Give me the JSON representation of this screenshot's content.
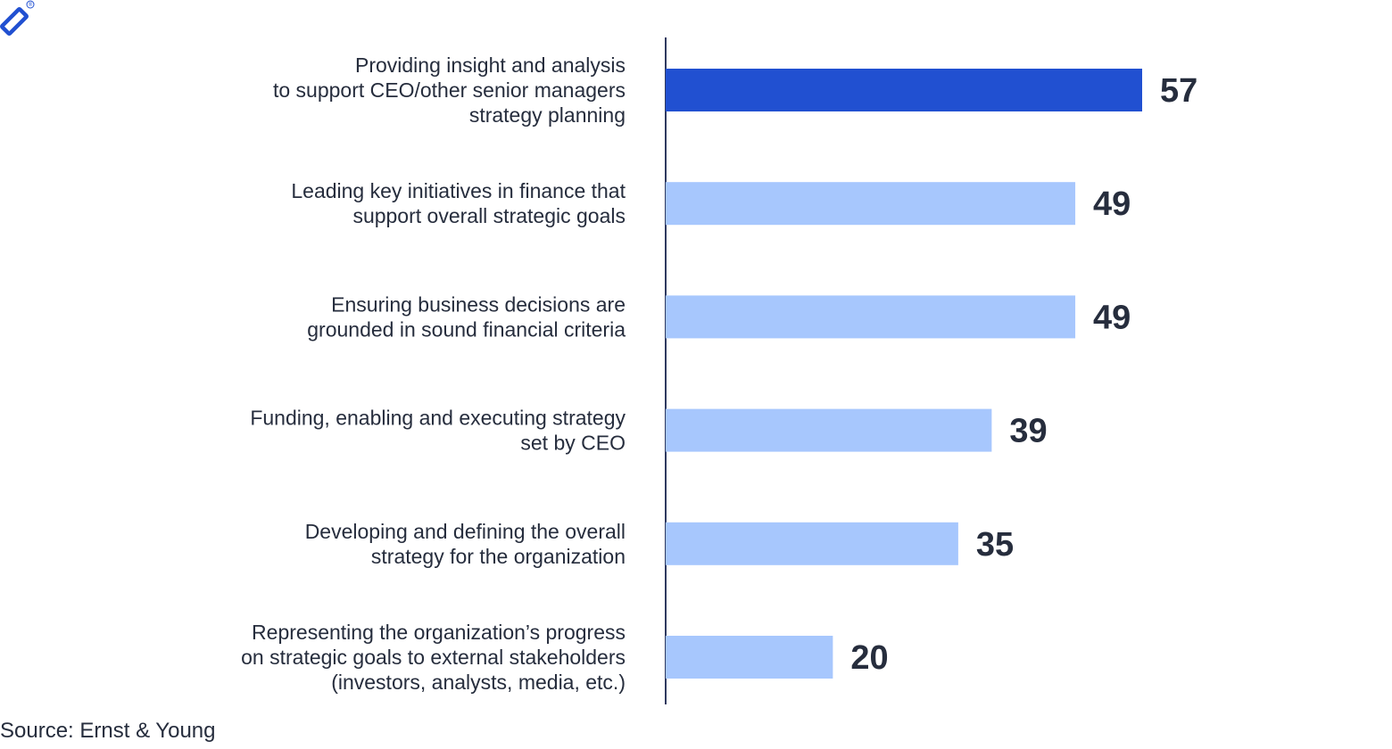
{
  "logo": {
    "icon": "toptal-logo-icon",
    "mark": "®"
  },
  "source": {
    "text": "Source: Ernst & Young"
  },
  "colors": {
    "highlight": "#2150d1",
    "bar": "#a7c7fd",
    "axis": "#2f3a60",
    "text": "#262d3d"
  },
  "chart_data": {
    "type": "bar",
    "orientation": "horizontal",
    "title": "",
    "xlabel": "",
    "ylabel": "",
    "xlim": [
      0,
      57
    ],
    "grid": false,
    "categories": [
      [
        "Providing insight and analysis",
        "to support CEO/other senior managers",
        "strategy planning"
      ],
      [
        "Leading key initiatives in finance that",
        "support overall strategic goals"
      ],
      [
        "Ensuring business decisions are",
        "grounded in sound financial criteria"
      ],
      [
        "Funding, enabling and executing strategy",
        "set by CEO"
      ],
      [
        "Developing and defining the overall",
        "strategy for the organization"
      ],
      [
        "Representing the organization’s progress",
        "on strategic goals to external stakeholders",
        "(investors, analysts, media, etc.)"
      ]
    ],
    "values": [
      57,
      49,
      49,
      39,
      35,
      20
    ],
    "highlight_index": 0
  }
}
